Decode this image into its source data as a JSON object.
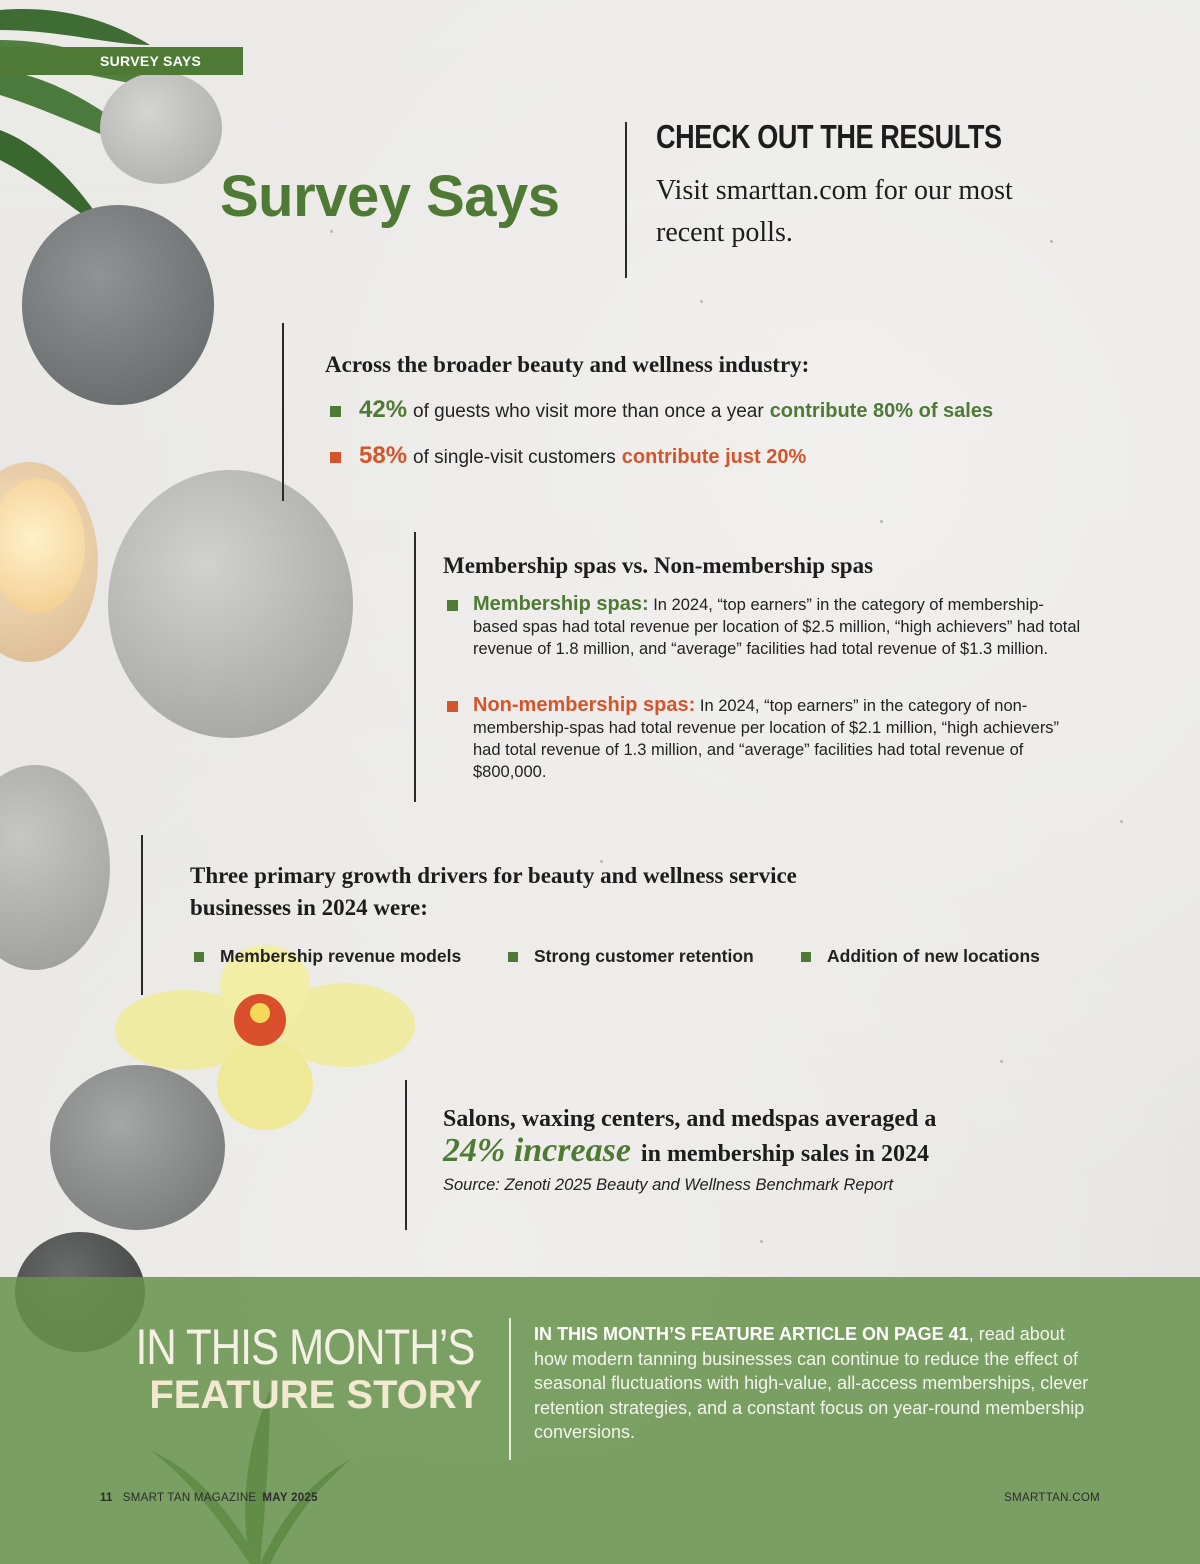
{
  "section_tab": "SURVEY SAYS",
  "title": "Survey Says",
  "check_results": {
    "heading": "CHECK OUT THE RESULTS",
    "body": "Visit smarttan.com for our most recent polls."
  },
  "industry": {
    "heading": "Across the broader beauty and wellness industry:",
    "stats": [
      {
        "pct": "42%",
        "text": "of guests who visit more than once a year",
        "emphasis": "contribute 80% of sales",
        "color": "#4f7a35"
      },
      {
        "pct": "58%",
        "text": "of single-visit customers",
        "emphasis": "contribute just 20%",
        "color": "#d4552b"
      }
    ]
  },
  "spas": {
    "heading": "Membership spas vs. Non-membership spas",
    "items": [
      {
        "label": "Membership spas:",
        "text": "In 2024, “top earners” in the category of membership-based spas had total revenue per location of $2.5 million, “high achievers” had total revenue of 1.8 million, and “average” facilities had total revenue of $1.3 million."
      },
      {
        "label": "Non-membership spas:",
        "text": "In 2024, “top earners” in the category of non-membership-spas had total revenue per location of $2.1 million, “high achievers” had total revenue of 1.3 million, and “average” facilities had total revenue of $800,000."
      }
    ]
  },
  "drivers": {
    "heading_line1": "Three primary growth drivers for beauty and wellness service",
    "heading_line2": "businesses in 2024 were:",
    "items": [
      "Membership revenue models",
      "Strong customer retention",
      "Addition of new locations"
    ]
  },
  "increase": {
    "line1": "Salons, waxing centers, and medspas averaged a",
    "big": "24% increase",
    "line2_rest": "in membership sales in 2024",
    "source": "Source: Zenoti 2025 Beauty and Wellness Benchmark Report"
  },
  "feature": {
    "top": "IN THIS MONTH’S",
    "bottom": "FEATURE STORY",
    "lead": "IN THIS MONTH’S FEATURE ARTICLE ON PAGE 41",
    "body": ", read about how modern tanning businesses can continue to reduce the effect of seasonal fluctuations with high-value, all-access memberships, clever retention strategies, and a constant focus on year-round membership conversions."
  },
  "footer": {
    "page": "11",
    "magazine": "SMART TAN MAGAZINE",
    "month": "MAY 2025",
    "site": "SMARTTAN.COM"
  },
  "colors": {
    "accent_green": "#4f7a35",
    "accent_orange": "#d4552b",
    "band_green": "#68934d"
  }
}
